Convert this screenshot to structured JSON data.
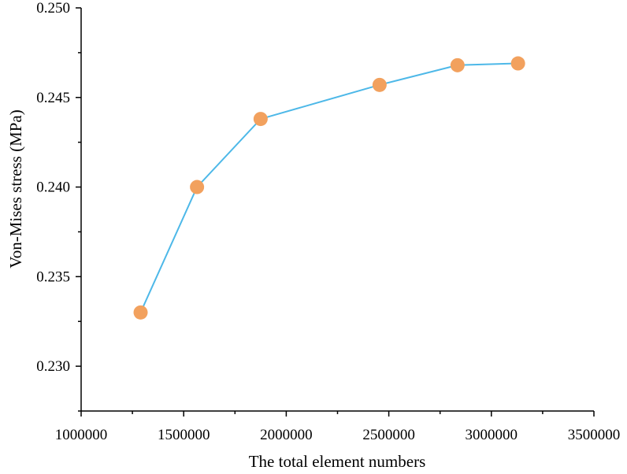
{
  "chart_data": {
    "type": "line",
    "title": "",
    "xlabel": "The total element numbers",
    "ylabel": "Von-Mises stress (MPa)",
    "xlim": [
      1000000,
      3500000
    ],
    "ylim": [
      0.2275,
      0.25
    ],
    "x_ticks": [
      1000000,
      1500000,
      2000000,
      2500000,
      3000000,
      3500000
    ],
    "x_tick_labels": [
      "1000000",
      "1500000",
      "2000000",
      "2500000",
      "3000000",
      "3500000"
    ],
    "y_ticks": [
      0.23,
      0.235,
      0.24,
      0.245,
      0.25
    ],
    "y_tick_labels": [
      "0.230",
      "0.235",
      "0.240",
      "0.245",
      "0.250"
    ],
    "grid": false,
    "series": [
      {
        "x": [
          1290000,
          1565000,
          1875000,
          2455000,
          2835000,
          3130000
        ],
        "y": [
          0.233,
          0.24,
          0.2438,
          0.2457,
          0.2468,
          0.2469
        ],
        "line_color": "#4DB8E8",
        "marker_color": "#F2A15E"
      }
    ]
  }
}
